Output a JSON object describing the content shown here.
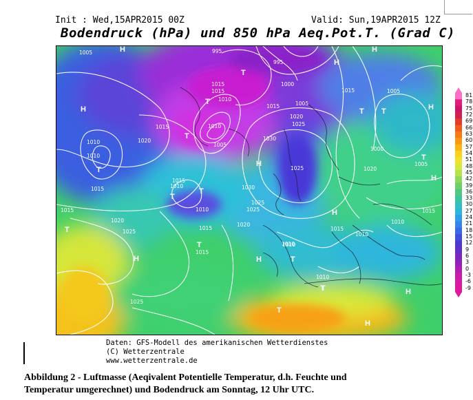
{
  "header": {
    "init": "Init : Wed,15APR2015 00Z",
    "valid": "Valid: Sun,19APR2015 12Z",
    "title": "Bodendruck (hPa) und 850 hPa Aeq.Pot.T. (Grad C)"
  },
  "colorbar": {
    "labels": [
      "81",
      "78",
      "75",
      "72",
      "69",
      "66",
      "63",
      "60",
      "57",
      "54",
      "51",
      "48",
      "45",
      "42",
      "39",
      "36",
      "33",
      "30",
      "27",
      "24",
      "21",
      "18",
      "15",
      "12",
      "9",
      "6",
      "3",
      "0",
      "-3",
      "-6",
      "-9"
    ],
    "colors": [
      "#ff6ec7",
      "#e6197f",
      "#cc1566",
      "#d0204f",
      "#e63a2a",
      "#f25b1c",
      "#f77a14",
      "#fb9811",
      "#fdb514",
      "#fdd11c",
      "#f2e12a",
      "#d6e83a",
      "#b3e34a",
      "#8fd95a",
      "#6ccf6a",
      "#4fc97f",
      "#3fc4a0",
      "#33bfc2",
      "#2eb4dd",
      "#2f9ee8",
      "#3584ec",
      "#3b68e6",
      "#404ddd",
      "#4b3ad2",
      "#6030c8",
      "#7a28c0",
      "#9522b8",
      "#b01eb2",
      "#c81cab",
      "#d81aa4",
      "#e0189c"
    ]
  },
  "map": {
    "isobar_labels": [
      {
        "t": "1005"
      },
      {
        "t": "995"
      },
      {
        "t": "995"
      },
      {
        "t": "1015"
      },
      {
        "t": "1015"
      },
      {
        "t": "1010"
      },
      {
        "t": "1005"
      },
      {
        "t": "1000"
      },
      {
        "t": "1015"
      },
      {
        "t": "1005"
      },
      {
        "t": "1015"
      },
      {
        "t": "1020"
      },
      {
        "t": "1025"
      },
      {
        "t": "1030"
      },
      {
        "t": "1000"
      },
      {
        "t": "1005"
      },
      {
        "t": "1010"
      },
      {
        "t": "1010"
      },
      {
        "t": "1015"
      },
      {
        "t": "1020"
      },
      {
        "t": "1010"
      },
      {
        "t": "1010"
      },
      {
        "t": "1015"
      },
      {
        "t": "1025"
      },
      {
        "t": "1030"
      },
      {
        "t": "1025"
      },
      {
        "t": "1020"
      },
      {
        "t": "1015"
      },
      {
        "t": "1025"
      },
      {
        "t": "1020"
      },
      {
        "t": "1015"
      },
      {
        "t": "1010"
      },
      {
        "t": "1010"
      },
      {
        "t": "1010"
      },
      {
        "t": "1025"
      },
      {
        "t": "1015"
      },
      {
        "t": "1020"
      },
      {
        "t": "1015"
      },
      {
        "t": "1010"
      },
      {
        "t": "1005"
      },
      {
        "t": "1010"
      },
      {
        "t": "1015"
      },
      {
        "t": "1015"
      },
      {
        "t": "1010"
      },
      {
        "t": "1025"
      }
    ],
    "pressure_centers": [
      {
        "t": "H"
      },
      {
        "t": "H"
      },
      {
        "t": "H"
      },
      {
        "t": "H"
      },
      {
        "t": "H"
      },
      {
        "t": "H"
      },
      {
        "t": "H"
      },
      {
        "t": "H"
      },
      {
        "t": "H"
      },
      {
        "t": "T"
      },
      {
        "t": "T"
      },
      {
        "t": "T"
      },
      {
        "t": "T"
      },
      {
        "t": "T"
      },
      {
        "t": "T"
      },
      {
        "t": "T"
      },
      {
        "t": "T"
      },
      {
        "t": "T"
      },
      {
        "t": "T"
      },
      {
        "t": "T"
      },
      {
        "t": "T"
      },
      {
        "t": "T"
      },
      {
        "t": "T"
      },
      {
        "t": "T"
      },
      {
        "t": "H"
      },
      {
        "t": "H"
      },
      {
        "t": "H"
      }
    ]
  },
  "credits": {
    "line1": "Daten: GFS-Modell des amerikanischen Wetterdienstes",
    "line2": "(C) Wetterzentrale",
    "line3": "www.wetterzentrale.de"
  },
  "caption": {
    "line1": "Abbildung 2 - Luftmasse (Aeqivalent Potentielle Temperatur, d.h. Feuchte und",
    "line2": "Temperatur umgerechnet) und Bodendruck am Sonntag, 12 Uhr UTC."
  }
}
